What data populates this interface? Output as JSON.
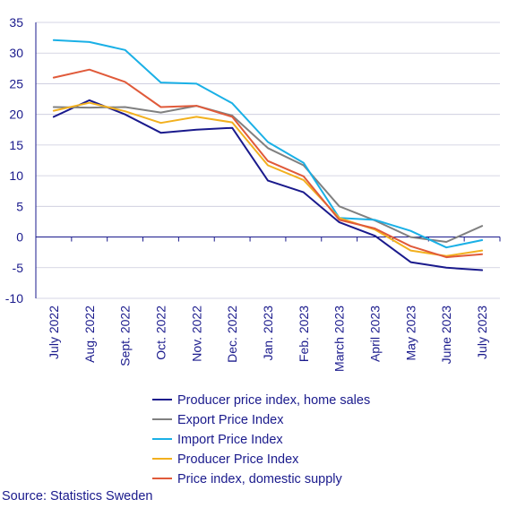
{
  "chart_data": {
    "type": "line",
    "categories": [
      "July 2022",
      "Aug. 2022",
      "Sept. 2022",
      "Oct. 2022",
      "Nov. 2022",
      "Dec. 2022",
      "Jan. 2023",
      "Feb. 2023",
      "March 2023",
      "April 2023",
      "May 2023",
      "June 2023",
      "July 2023"
    ],
    "ylim": [
      -10,
      35
    ],
    "yticks": [
      35,
      30,
      25,
      20,
      15,
      10,
      5,
      0,
      -5,
      -10
    ],
    "grid": true,
    "legend_position": "bottom",
    "series": [
      {
        "name": "Producer price index, home sales",
        "color": "#1a1a8c",
        "values": [
          19.6,
          22.3,
          20.0,
          17.0,
          17.5,
          17.8,
          9.2,
          7.3,
          2.4,
          0.2,
          -4.1,
          -5.0,
          -5.4
        ]
      },
      {
        "name": "Export Price Index",
        "color": "#808080",
        "values": [
          21.2,
          21.1,
          21.2,
          20.3,
          21.4,
          19.8,
          14.5,
          11.7,
          5.0,
          2.7,
          0.0,
          -0.8,
          1.8
        ]
      },
      {
        "name": "Import Price Index",
        "color": "#1ab0e6",
        "values": [
          32.1,
          31.8,
          30.5,
          25.2,
          25.0,
          21.8,
          15.5,
          12.1,
          3.1,
          2.8,
          1.0,
          -1.7,
          -0.5
        ]
      },
      {
        "name": "Producer Price Index",
        "color": "#f2b01e",
        "values": [
          20.6,
          21.9,
          20.5,
          18.6,
          19.6,
          18.7,
          11.7,
          9.3,
          3.1,
          1.2,
          -2.2,
          -3.1,
          -2.2
        ]
      },
      {
        "name": "Price index, domestic supply",
        "color": "#e05a3a",
        "values": [
          26.0,
          27.3,
          25.3,
          21.2,
          21.4,
          19.6,
          12.4,
          9.9,
          2.8,
          1.4,
          -1.5,
          -3.3,
          -2.8
        ]
      }
    ]
  },
  "source": "Source: Statistics Sweden"
}
